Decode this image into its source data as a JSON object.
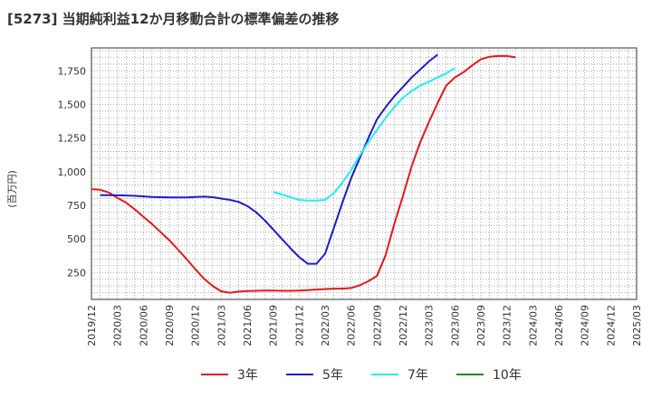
{
  "chart_data": {
    "type": "line",
    "title": "[5273]  当期純利益12か月移動合計の標準偏差の推移",
    "xlabel": "",
    "ylabel": "(百万円)",
    "ylim": [
      50,
      1920
    ],
    "yticks": [
      250,
      500,
      750,
      "1,000",
      "1,250",
      "1,500",
      "1,750"
    ],
    "ytick_values": [
      250,
      500,
      750,
      1000,
      1250,
      1500,
      1750
    ],
    "x_categories": [
      "2019/12",
      "2020/03",
      "2020/06",
      "2020/09",
      "2020/12",
      "2021/03",
      "2021/06",
      "2021/09",
      "2021/12",
      "2022/03",
      "2022/06",
      "2022/09",
      "2022/12",
      "2023/03",
      "2023/06",
      "2023/09",
      "2023/12",
      "2024/03",
      "2024/06",
      "2024/09",
      "2024/12",
      "2025/03"
    ],
    "grid": true,
    "legend_position": "bottom",
    "series": [
      {
        "name": "3年",
        "color": "#e8161a",
        "start_index": 0,
        "values": [
          870,
          865,
          845,
          805,
          770,
          720,
          665,
          610,
          550,
          490,
          420,
          350,
          275,
          205,
          150,
          110,
          100,
          108,
          112,
          114,
          115,
          115,
          114,
          114,
          116,
          119,
          123,
          127,
          130,
          130,
          135,
          155,
          185,
          225,
          380,
          610,
          820,
          1040,
          1220,
          1370,
          1510,
          1640,
          1700,
          1740,
          1790,
          1835,
          1855,
          1860,
          1860,
          1850
        ]
      },
      {
        "name": "5年",
        "color": "#1c1ccc",
        "start_index": 1,
        "values": [
          825,
          825,
          824,
          823,
          820,
          816,
          812,
          810,
          809,
          808,
          809,
          812,
          814,
          810,
          800,
          790,
          775,
          745,
          700,
          640,
          570,
          500,
          430,
          365,
          315,
          315,
          390,
          580,
          770,
          950,
          1100,
          1250,
          1390,
          1480,
          1560,
          1630,
          1700,
          1760,
          1820,
          1870
        ]
      },
      {
        "name": "7年",
        "color": "#1ff0f0",
        "start_index": 21,
        "values": [
          850,
          830,
          810,
          790,
          785,
          785,
          790,
          840,
          920,
          1010,
          1120,
          1220,
          1310,
          1400,
          1480,
          1550,
          1600,
          1640,
          1670,
          1700,
          1730,
          1770
        ]
      },
      {
        "name": "10年",
        "color": "#1e8c1e",
        "start_index": 0,
        "values": []
      }
    ]
  }
}
